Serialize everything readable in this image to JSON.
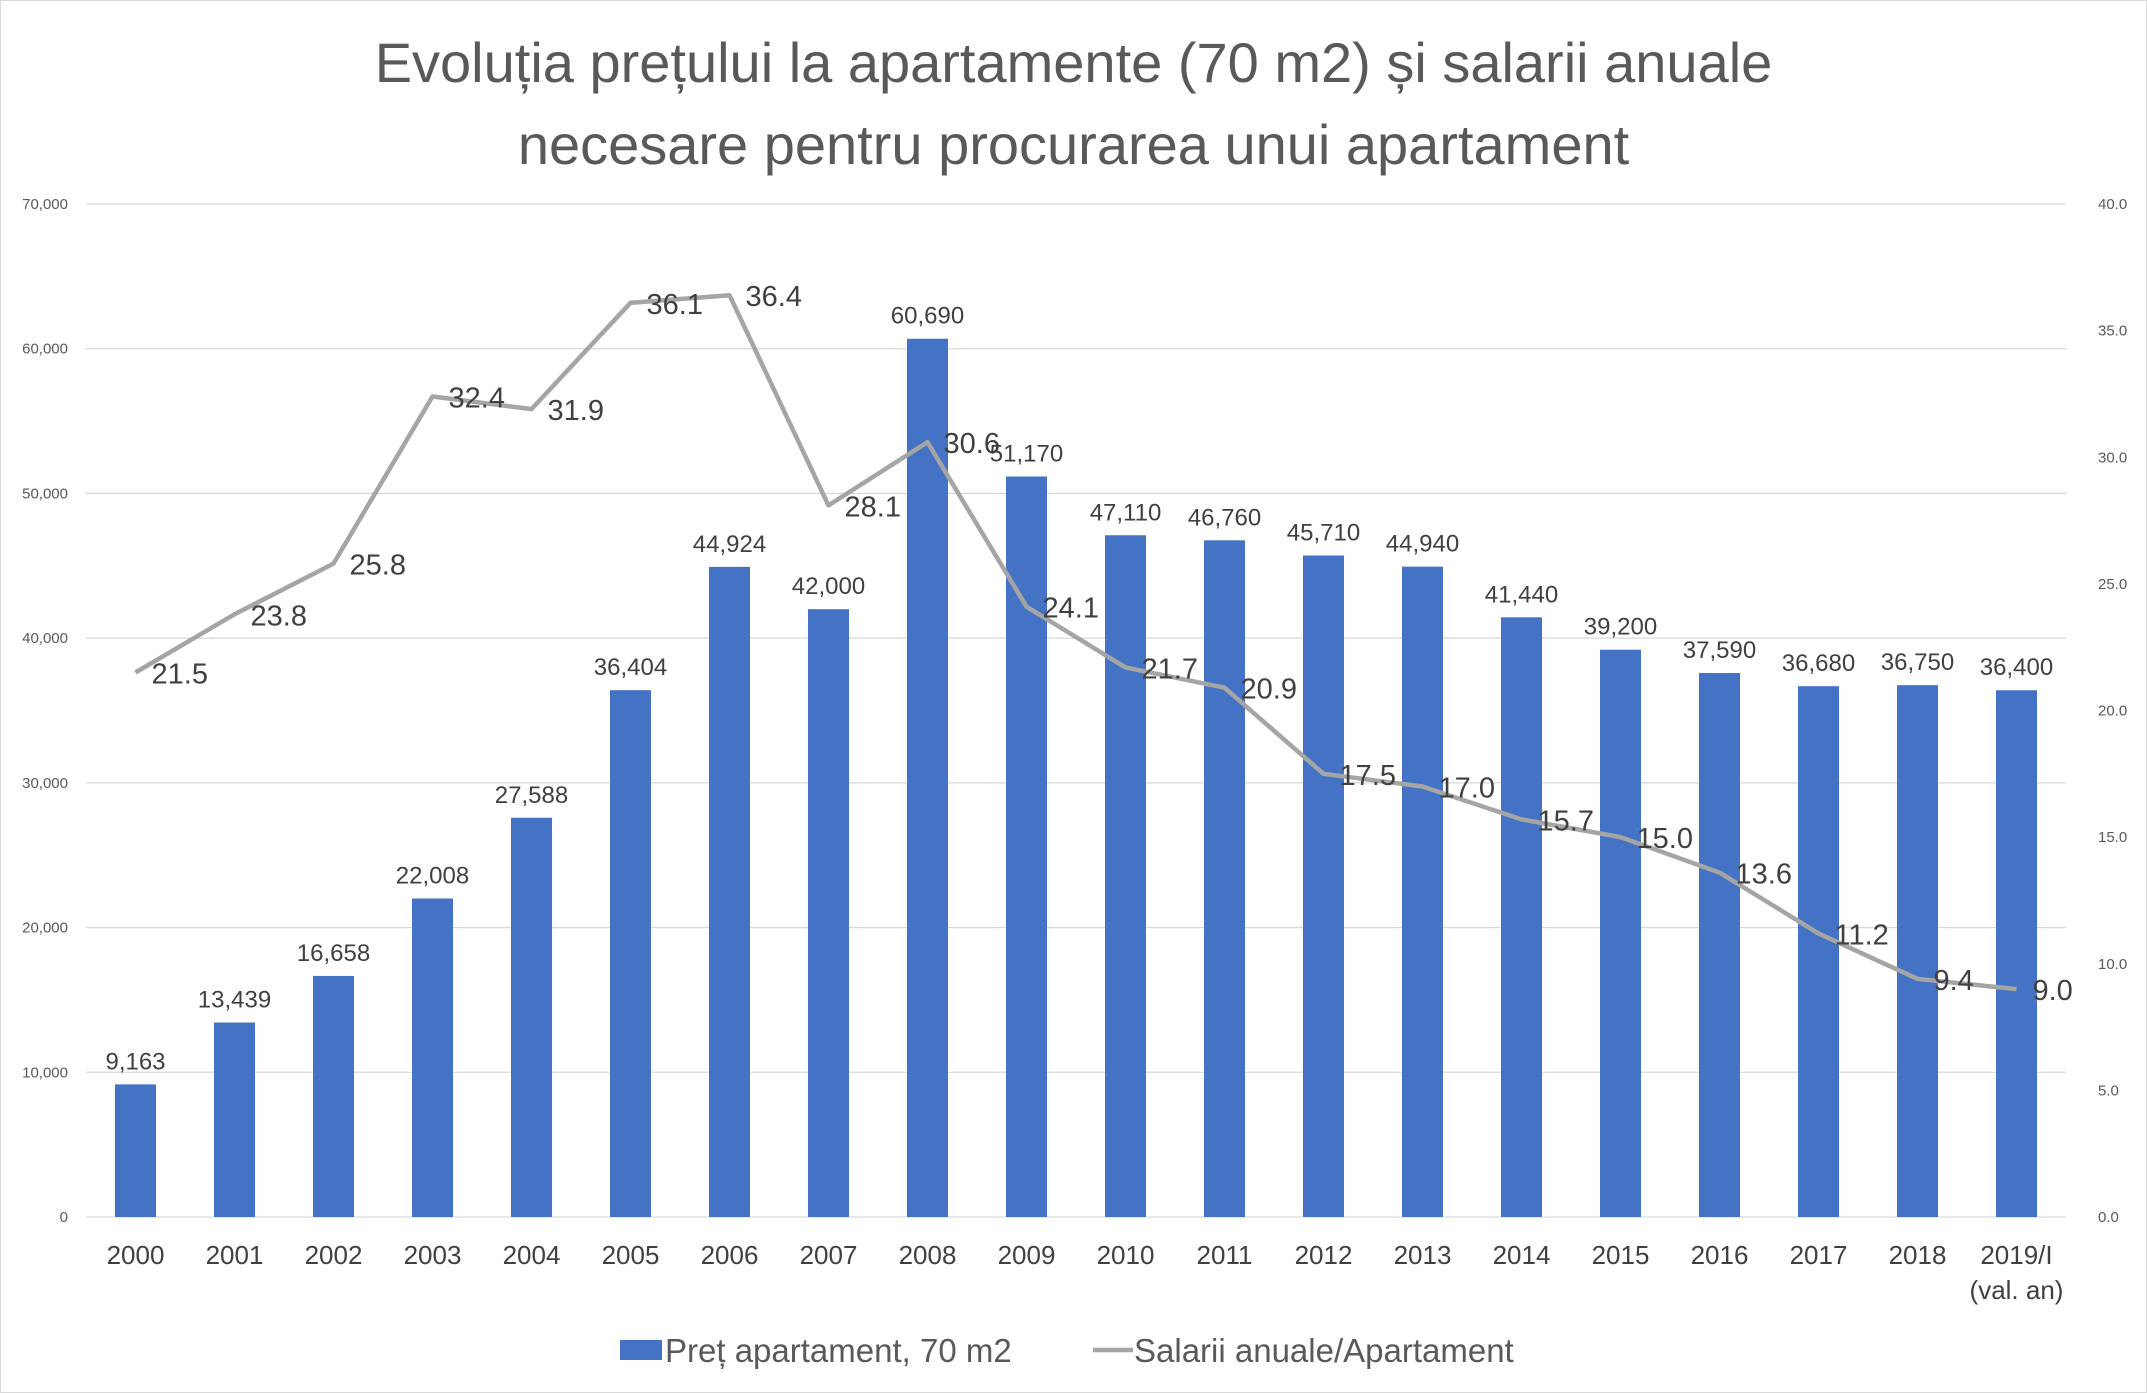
{
  "title_line1": "Evoluția prețului la apartamente (70 m2) și salarii anuale",
  "title_line2": "necesare pentru procurarea unui apartament",
  "chart_data": {
    "type": "bar+line",
    "categories": [
      "2000",
      "2001",
      "2002",
      "2003",
      "2004",
      "2005",
      "2006",
      "2007",
      "2008",
      "2009",
      "2010",
      "2011",
      "2012",
      "2013",
      "2014",
      "2015",
      "2016",
      "2017",
      "2018",
      "2019/I (val. an)"
    ],
    "category_lines": [
      [
        "2000"
      ],
      [
        "2001"
      ],
      [
        "2002"
      ],
      [
        "2003"
      ],
      [
        "2004"
      ],
      [
        "2005"
      ],
      [
        "2006"
      ],
      [
        "2007"
      ],
      [
        "2008"
      ],
      [
        "2009"
      ],
      [
        "2010"
      ],
      [
        "2011"
      ],
      [
        "2012"
      ],
      [
        "2013"
      ],
      [
        "2014"
      ],
      [
        "2015"
      ],
      [
        "2016"
      ],
      [
        "2017"
      ],
      [
        "2018"
      ],
      [
        "2019/I",
        "(val. an)"
      ]
    ],
    "series": [
      {
        "name": "Preț apartament, 70 m2",
        "type": "bar",
        "axis": "left",
        "color": "#4472C4",
        "values": [
          9163,
          13439,
          16658,
          22008,
          27588,
          36404,
          44924,
          42000,
          60690,
          51170,
          47110,
          46760,
          45710,
          44940,
          41440,
          39200,
          37590,
          36680,
          36750,
          36400
        ],
        "labels": [
          "9,163",
          "13,439",
          "16,658",
          "22,008",
          "27,588",
          "36,404",
          "44,924",
          "42,000",
          "60,690",
          "51,170",
          "47,110",
          "46,760",
          "45,710",
          "44,940",
          "41,440",
          "39,200",
          "37,590",
          "36,680",
          "36,750",
          "36,400"
        ]
      },
      {
        "name": "Salarii anuale/Apartament",
        "type": "line",
        "axis": "right",
        "color": "#A5A5A5",
        "values": [
          21.5,
          23.8,
          25.8,
          32.4,
          31.9,
          36.1,
          36.4,
          28.1,
          30.6,
          24.1,
          21.7,
          20.9,
          17.5,
          17.0,
          15.7,
          15.0,
          13.6,
          11.2,
          9.4,
          9.0
        ],
        "labels": [
          "21.5",
          "23.8",
          "25.8",
          "32.4",
          "31.9",
          "36.1",
          "36.4",
          "28.1",
          "30.6",
          "24.1",
          "21.7",
          "20.9",
          "17.5",
          "17.0",
          "15.7",
          "15.0",
          "13.6",
          "11.2",
          "9.4",
          "9.0"
        ]
      }
    ],
    "y_left": {
      "range": [
        0,
        70000
      ],
      "ticks": [
        "0",
        "10,000",
        "20,000",
        "30,000",
        "40,000",
        "50,000",
        "60,000",
        "70,000"
      ]
    },
    "y_right": {
      "range": [
        0,
        40
      ],
      "ticks": [
        "0.0",
        "5.0",
        "10.0",
        "15.0",
        "20.0",
        "25.0",
        "30.0",
        "35.0",
        "40.0"
      ]
    },
    "grid": true,
    "legend_position": "bottom",
    "gridline_color": "#d9d9d9"
  }
}
